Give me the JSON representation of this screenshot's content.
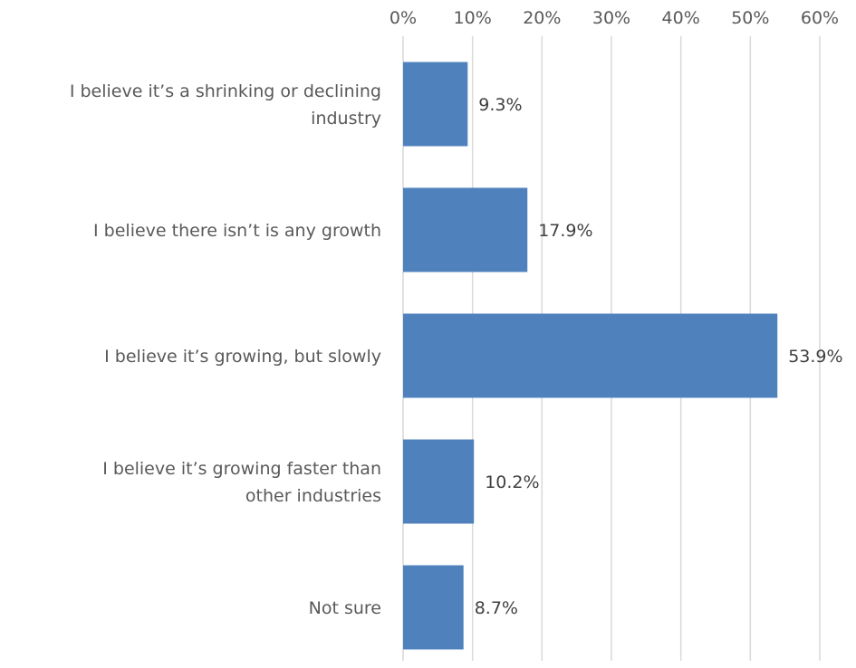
{
  "chart_data": {
    "type": "bar",
    "orientation": "horizontal",
    "title": "",
    "xlabel": "",
    "ylabel": "",
    "xlim": [
      0,
      60
    ],
    "xticks": [
      "0%",
      "10%",
      "20%",
      "30%",
      "40%",
      "50%",
      "60%"
    ],
    "x_axis_position": "top",
    "grid": true,
    "categories": [
      [
        "I believe it’s a shrinking or declining",
        "industry"
      ],
      [
        "I believe there isn’t is any growth"
      ],
      [
        "I believe it’s growing, but slowly"
      ],
      [
        "I believe it’s growing faster than",
        "other industries"
      ],
      [
        "Not sure"
      ]
    ],
    "values": [
      9.3,
      17.9,
      53.9,
      10.2,
      8.7
    ],
    "data_labels": [
      "9.3%",
      "17.9%",
      "53.9%",
      "10.2%",
      "8.7%"
    ],
    "bar_color": "#4f81bd"
  }
}
